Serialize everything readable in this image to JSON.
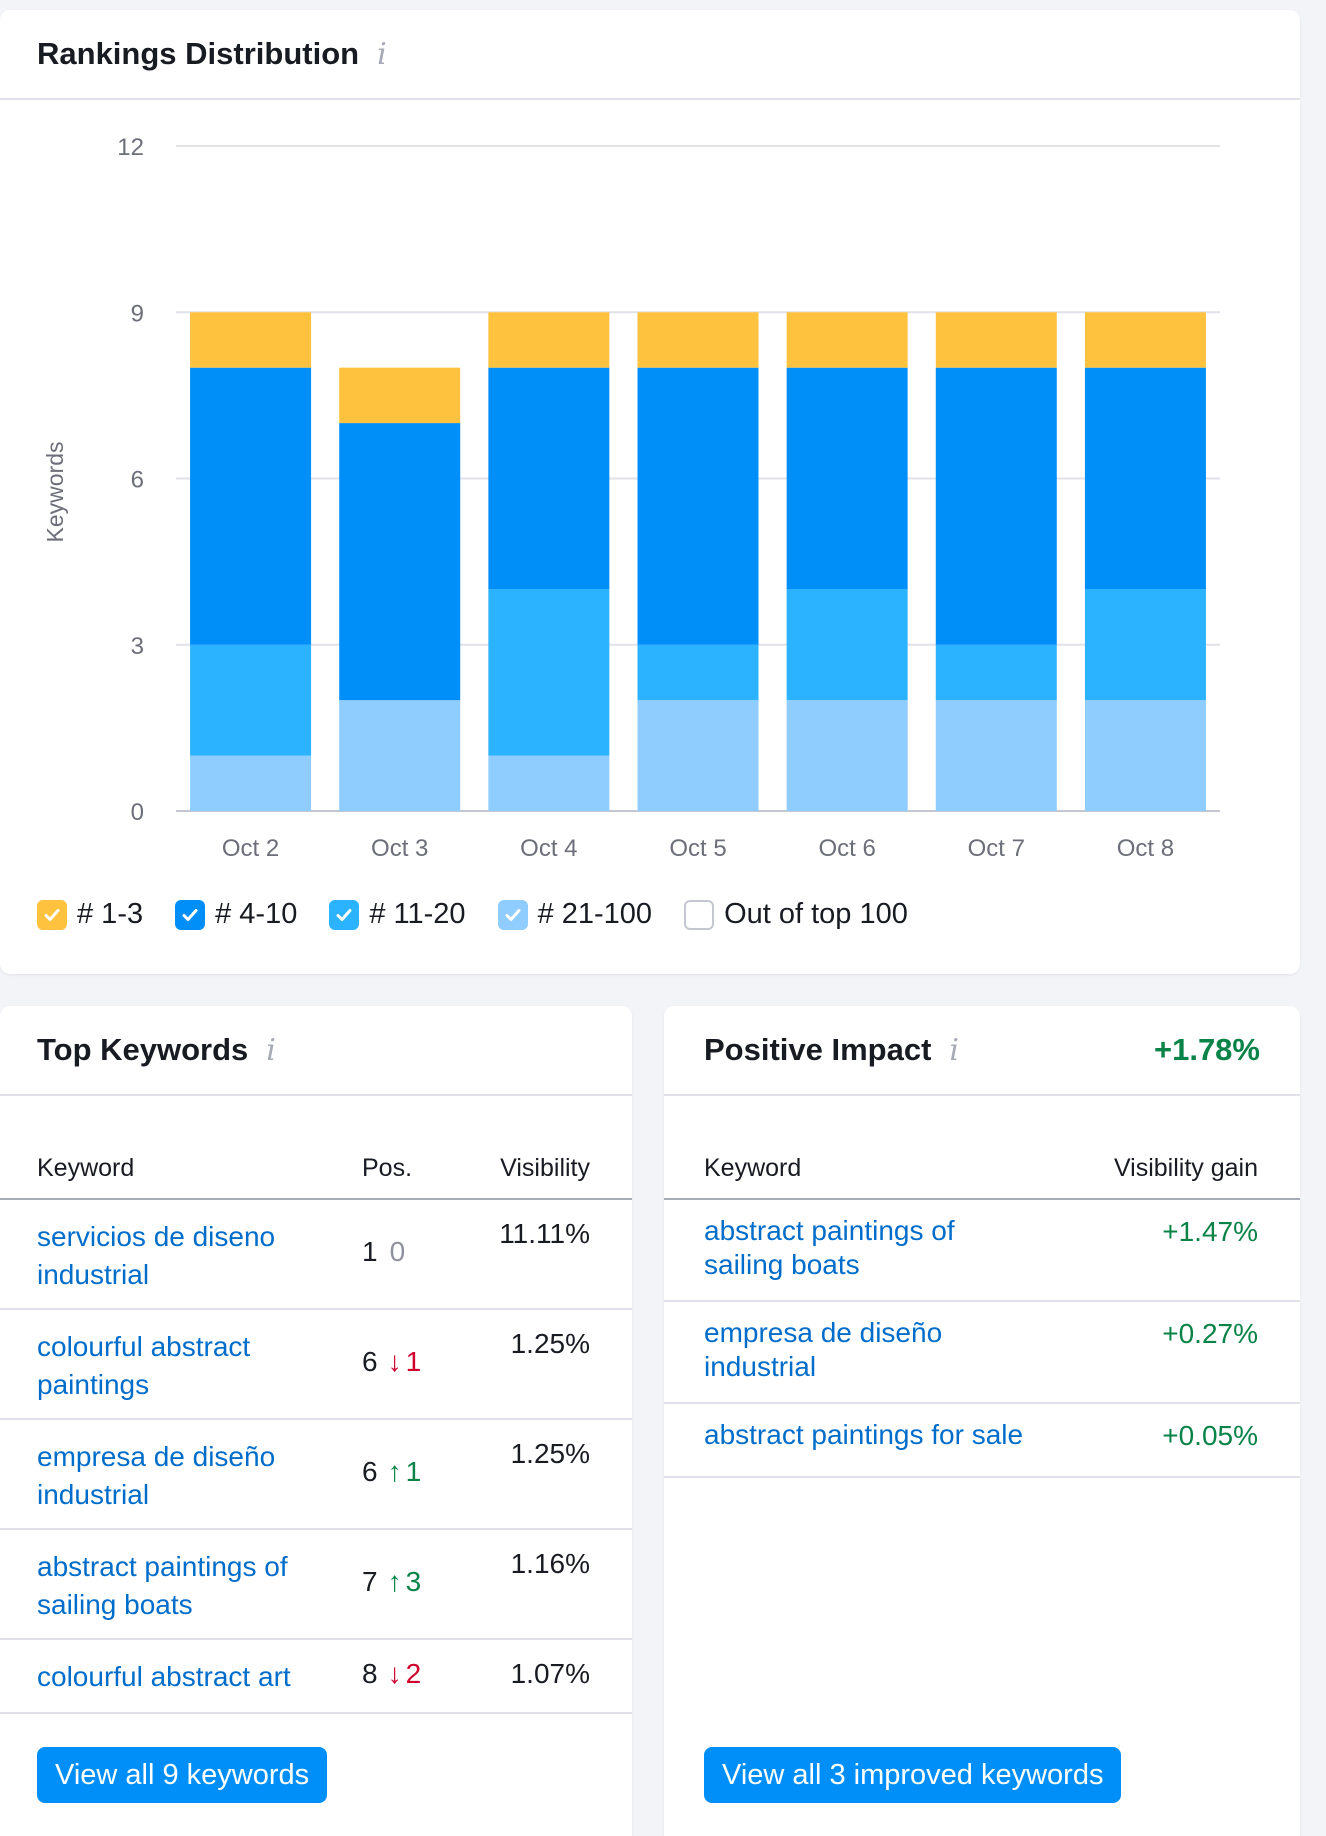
{
  "rankings": {
    "title": "Rankings Distribution",
    "info_icon": "info-icon",
    "legend": [
      {
        "label": "# 1-3",
        "color": "#ffc23f",
        "checked": true
      },
      {
        "label": "# 4-10",
        "color": "#008ff8",
        "checked": true
      },
      {
        "label": "# 11-20",
        "color": "#2bb3ff",
        "checked": true
      },
      {
        "label": "# 21-100",
        "color": "#8fccff",
        "checked": true
      },
      {
        "label": "Out of top 100",
        "color": "#ffffff",
        "checked": false
      }
    ]
  },
  "chart_data": {
    "type": "bar",
    "stacked": true,
    "ylabel": "Keywords",
    "xlabel": "",
    "ylim": [
      0,
      12
    ],
    "yticks": [
      0,
      3,
      6,
      9,
      12
    ],
    "categories": [
      "Oct 2",
      "Oct 3",
      "Oct 4",
      "Oct 5",
      "Oct 6",
      "Oct 7",
      "Oct 8"
    ],
    "series": [
      {
        "name": "# 21-100",
        "color": "#8fccff",
        "values": [
          1,
          2,
          1,
          2,
          2,
          2,
          2
        ]
      },
      {
        "name": "# 11-20",
        "color": "#2bb3ff",
        "values": [
          2,
          0,
          3,
          1,
          2,
          1,
          2
        ]
      },
      {
        "name": "# 4-10",
        "color": "#008ff8",
        "values": [
          5,
          5,
          4,
          5,
          4,
          5,
          4
        ]
      },
      {
        "name": "# 1-3",
        "color": "#ffc23f",
        "values": [
          1,
          1,
          1,
          1,
          1,
          1,
          1
        ]
      }
    ]
  },
  "top_keywords": {
    "title": "Top Keywords",
    "columns": {
      "keyword": "Keyword",
      "pos": "Pos.",
      "visibility": "Visibility"
    },
    "rows": [
      {
        "line1": "servicios de diseno",
        "line2": "industrial",
        "pos": "1",
        "delta": "0",
        "dir": "none",
        "visibility": "11.11%"
      },
      {
        "line1": "colourful abstract",
        "line2": "paintings",
        "pos": "6",
        "delta": "1",
        "dir": "down",
        "visibility": "1.25%"
      },
      {
        "line1": "empresa de diseño",
        "line2": "industrial",
        "pos": "6",
        "delta": "1",
        "dir": "up",
        "visibility": "1.25%"
      },
      {
        "line1": "abstract paintings of",
        "line2": "sailing boats",
        "pos": "7",
        "delta": "3",
        "dir": "up",
        "visibility": "1.16%"
      },
      {
        "line1": "colourful abstract art",
        "line2": "",
        "pos": "8",
        "delta": "2",
        "dir": "down",
        "visibility": "1.07%"
      }
    ],
    "button": "View all 9 keywords"
  },
  "positive_impact": {
    "title": "Positive Impact",
    "total": "+1.78%",
    "columns": {
      "keyword": "Keyword",
      "gain": "Visibility gain"
    },
    "rows": [
      {
        "line1": "abstract paintings of",
        "line2": "sailing boats",
        "gain": "+1.47%"
      },
      {
        "line1": "empresa de diseño",
        "line2": "industrial",
        "gain": "+0.27%"
      },
      {
        "line1": "abstract paintings for sale",
        "line2": "",
        "gain": "+0.05%"
      }
    ],
    "button": "View all 3 improved keywords"
  },
  "arrows": {
    "up": "↑",
    "down": "↓"
  }
}
